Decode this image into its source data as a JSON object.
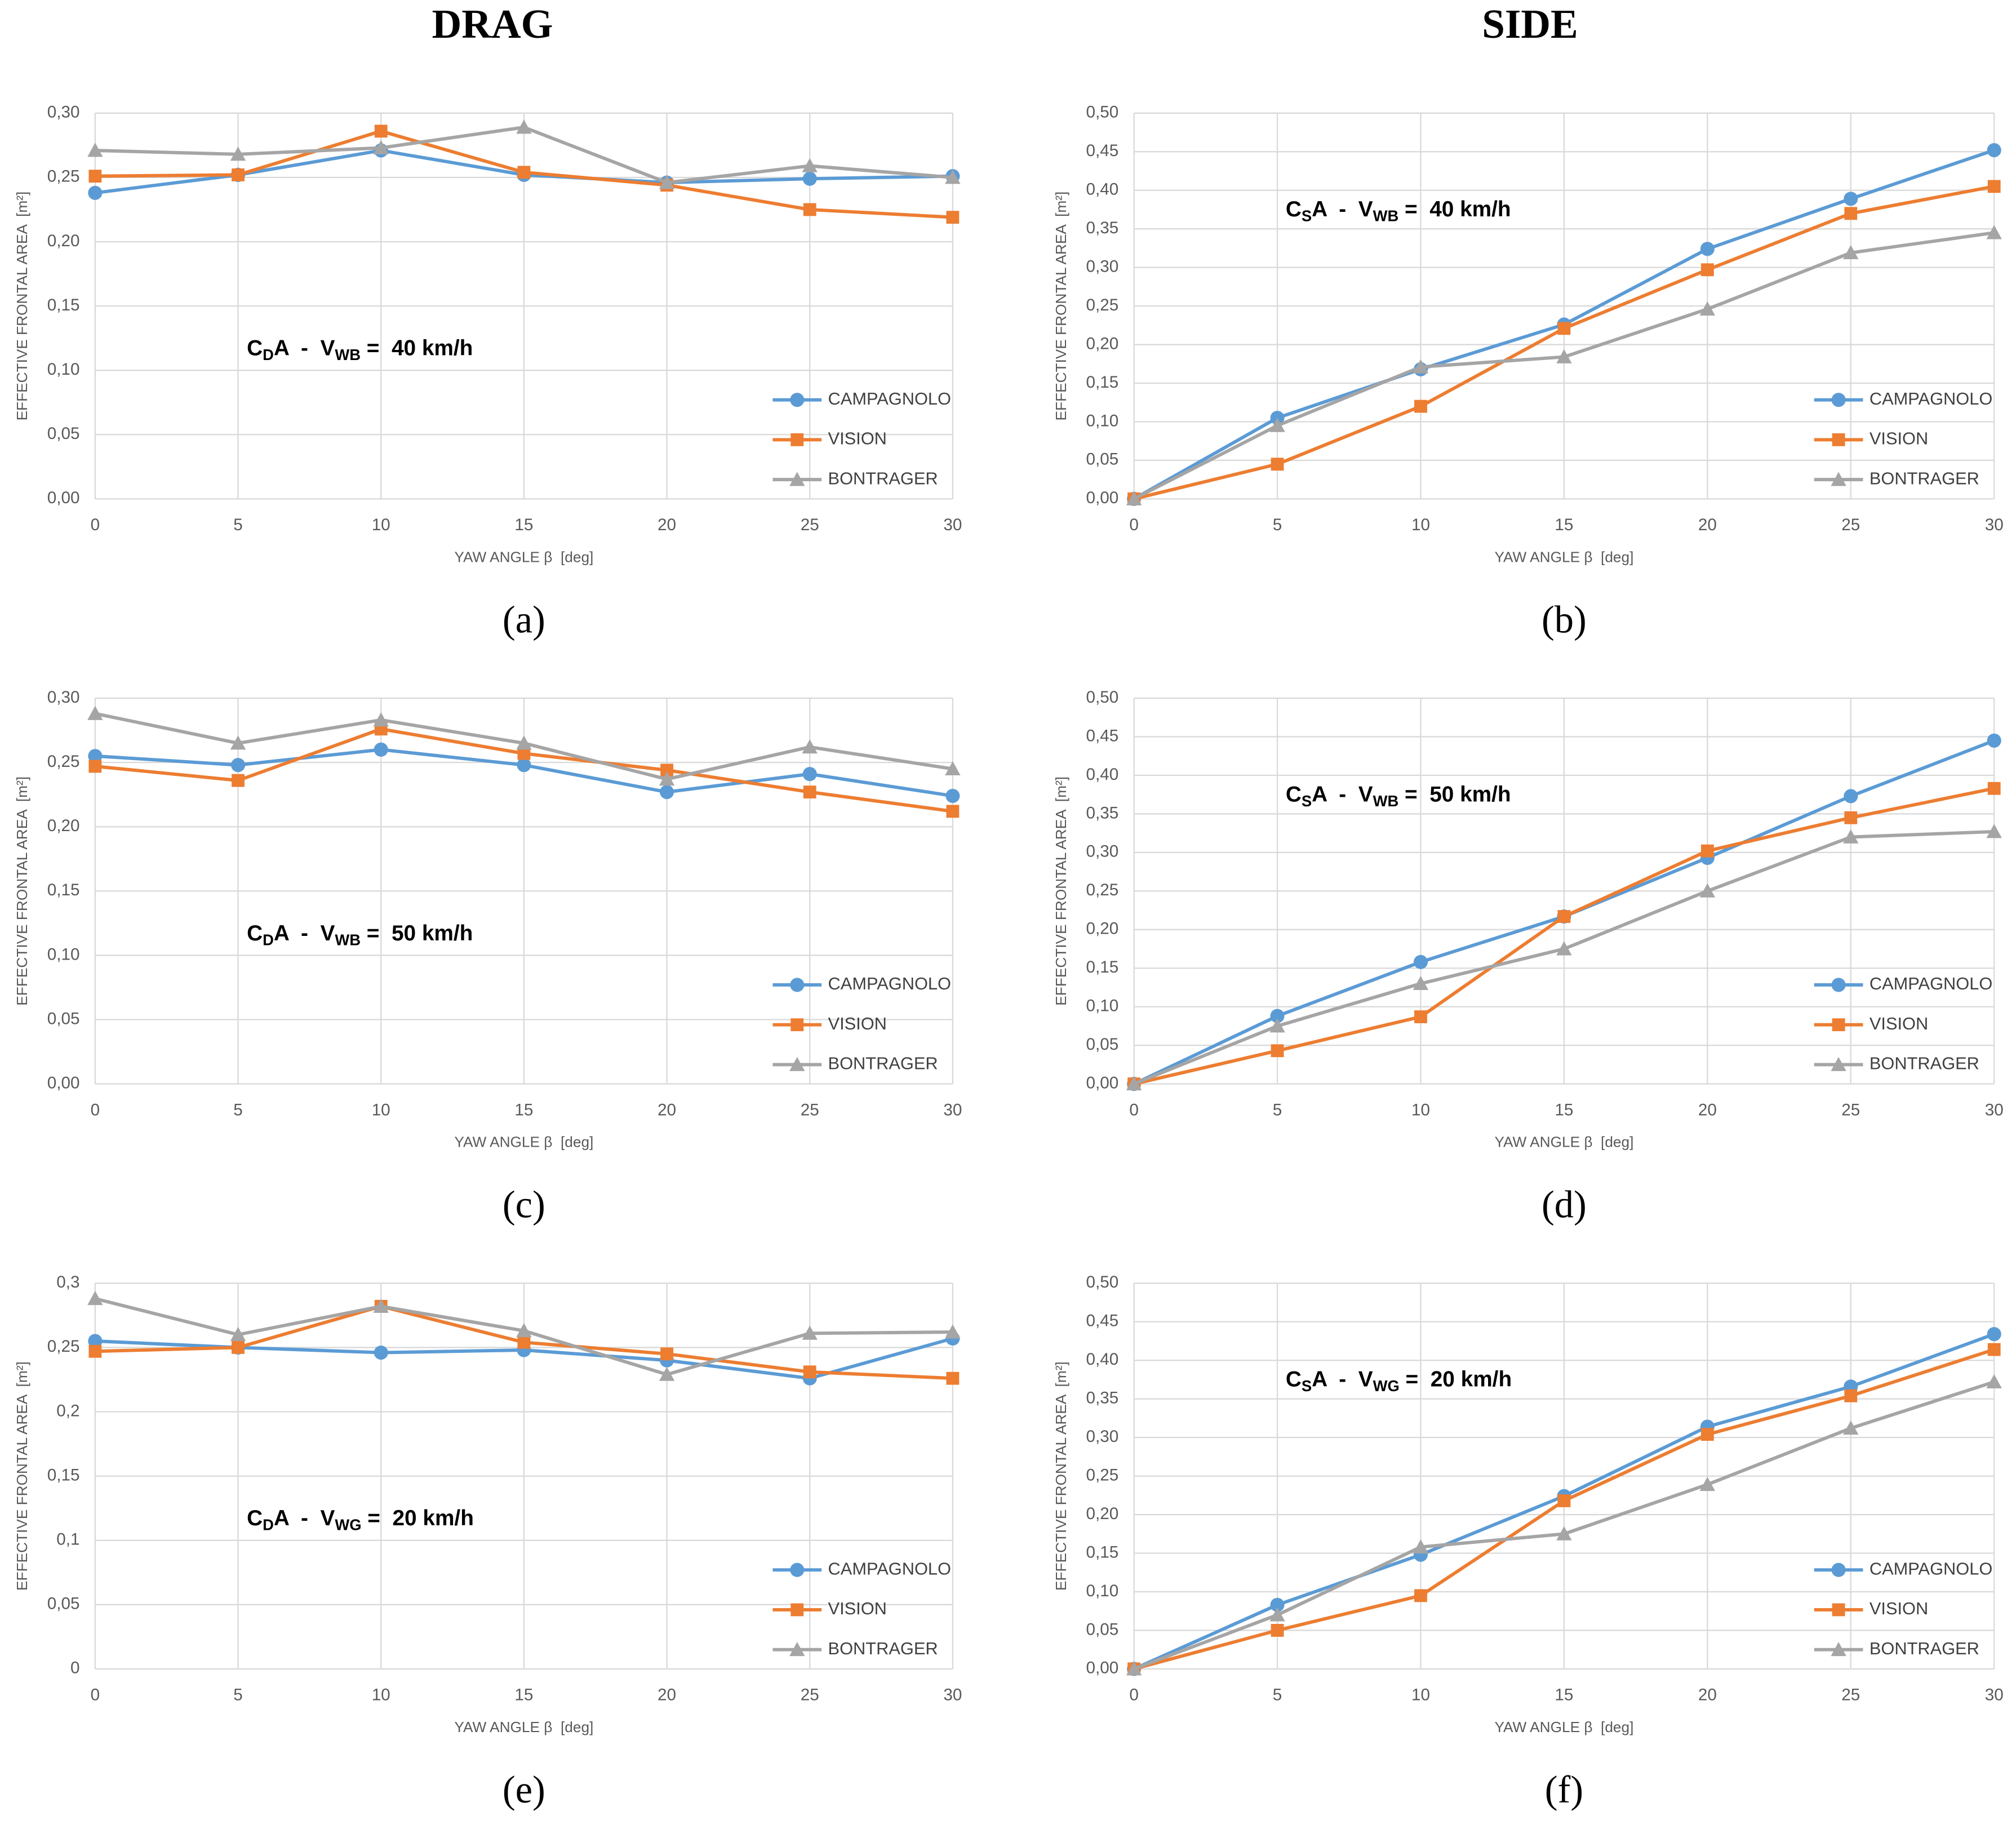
{
  "column_titles": [
    "DRAG",
    "SIDE"
  ],
  "chart_data": [
    {
      "type": "line",
      "label": "(a)",
      "annotation": [
        "C",
        "D",
        "A  -  V",
        "WB",
        " =  40 km/h"
      ],
      "x_label": "YAW ANGLE β  [deg]",
      "y_label": "EFFECTIVE FRONTAL AREA  [m²]",
      "x": [
        0,
        5,
        10,
        15,
        20,
        25,
        30
      ],
      "xlim": [
        0,
        30
      ],
      "xticks": [
        0,
        5,
        10,
        15,
        20,
        25,
        30
      ],
      "ylim": [
        0,
        0.3
      ],
      "yticks": [
        {
          "value": 0,
          "label": "0,00"
        },
        {
          "value": 0.05,
          "label": "0,05"
        },
        {
          "value": 0.1,
          "label": "0,10"
        },
        {
          "value": 0.15,
          "label": "0,15"
        },
        {
          "value": 0.2,
          "label": "0,20"
        },
        {
          "value": 0.25,
          "label": "0,25"
        },
        {
          "value": 0.3,
          "label": "0,30"
        }
      ],
      "grid": true,
      "legend": "lower right",
      "series": [
        {
          "name": "CAMPAGNOLO",
          "color": "#5b9bd5",
          "marker": "circle",
          "values": [
            0.238,
            0.252,
            0.271,
            0.252,
            0.246,
            0.249,
            0.251
          ]
        },
        {
          "name": "VISION",
          "color": "#ed7d31",
          "marker": "square",
          "values": [
            0.251,
            0.252,
            0.286,
            0.254,
            0.244,
            0.225,
            0.219
          ]
        },
        {
          "name": "BONTRAGER",
          "color": "#a5a5a5",
          "marker": "triangle",
          "values": [
            0.271,
            0.268,
            0.273,
            0.289,
            0.246,
            0.259,
            0.25
          ]
        }
      ]
    },
    {
      "type": "line",
      "label": "(b)",
      "annotation": [
        "C",
        "S",
        "A  -  V",
        "WB",
        " =  40 km/h"
      ],
      "x_label": "YAW ANGLE β  [deg]",
      "y_label": "EFFECTIVE FRONTAL AREA  [m²]",
      "x": [
        0,
        5,
        10,
        15,
        20,
        25,
        30
      ],
      "xlim": [
        0,
        30
      ],
      "xticks": [
        0,
        5,
        10,
        15,
        20,
        25,
        30
      ],
      "ylim": [
        0,
        0.5
      ],
      "yticks": [
        {
          "value": 0,
          "label": "0,00"
        },
        {
          "value": 0.05,
          "label": "0,05"
        },
        {
          "value": 0.1,
          "label": "0,10"
        },
        {
          "value": 0.15,
          "label": "0,15"
        },
        {
          "value": 0.2,
          "label": "0,20"
        },
        {
          "value": 0.25,
          "label": "0,25"
        },
        {
          "value": 0.3,
          "label": "0,30"
        },
        {
          "value": 0.35,
          "label": "0,35"
        },
        {
          "value": 0.4,
          "label": "0,40"
        },
        {
          "value": 0.45,
          "label": "0,45"
        },
        {
          "value": 0.5,
          "label": "0,50"
        }
      ],
      "grid": true,
      "legend": "lower right",
      "series": [
        {
          "name": "CAMPAGNOLO",
          "color": "#5b9bd5",
          "marker": "circle",
          "values": [
            0,
            0.105,
            0.168,
            0.226,
            0.324,
            0.389,
            0.452
          ]
        },
        {
          "name": "VISION",
          "color": "#ed7d31",
          "marker": "square",
          "values": [
            0,
            0.045,
            0.12,
            0.221,
            0.297,
            0.37,
            0.405
          ]
        },
        {
          "name": "BONTRAGER",
          "color": "#a5a5a5",
          "marker": "triangle",
          "values": [
            0,
            0.095,
            0.171,
            0.184,
            0.246,
            0.319,
            0.345
          ]
        }
      ]
    },
    {
      "type": "line",
      "label": "(c)",
      "annotation": [
        "C",
        "D",
        "A  -  V",
        "WB",
        " =  50 km/h"
      ],
      "x_label": "YAW ANGLE β  [deg]",
      "y_label": "EFFECTIVE FRONTAL AREA  [m²]",
      "x": [
        0,
        5,
        10,
        15,
        20,
        25,
        30
      ],
      "xlim": [
        0,
        30
      ],
      "xticks": [
        0,
        5,
        10,
        15,
        20,
        25,
        30
      ],
      "ylim": [
        0,
        0.3
      ],
      "yticks": [
        {
          "value": 0,
          "label": "0,00"
        },
        {
          "value": 0.05,
          "label": "0,05"
        },
        {
          "value": 0.1,
          "label": "0,10"
        },
        {
          "value": 0.15,
          "label": "0,15"
        },
        {
          "value": 0.2,
          "label": "0,20"
        },
        {
          "value": 0.25,
          "label": "0,25"
        },
        {
          "value": 0.3,
          "label": "0,30"
        }
      ],
      "grid": true,
      "legend": "lower right",
      "series": [
        {
          "name": "CAMPAGNOLO",
          "color": "#5b9bd5",
          "marker": "circle",
          "values": [
            0.255,
            0.248,
            0.26,
            0.248,
            0.227,
            0.241,
            0.224
          ]
        },
        {
          "name": "VISION",
          "color": "#ed7d31",
          "marker": "square",
          "values": [
            0.247,
            0.236,
            0.276,
            0.257,
            0.244,
            0.227,
            0.212
          ]
        },
        {
          "name": "BONTRAGER",
          "color": "#a5a5a5",
          "marker": "triangle",
          "values": [
            0.288,
            0.265,
            0.283,
            0.265,
            0.237,
            0.262,
            0.245
          ]
        }
      ]
    },
    {
      "type": "line",
      "label": "(d)",
      "annotation": [
        "C",
        "S",
        "A  -  V",
        "WB",
        " =  50 km/h"
      ],
      "x_label": "YAW ANGLE β  [deg]",
      "y_label": "EFFECTIVE FRONTAL AREA  [m²]",
      "x": [
        0,
        5,
        10,
        15,
        20,
        25,
        30
      ],
      "xlim": [
        0,
        30
      ],
      "xticks": [
        0,
        5,
        10,
        15,
        20,
        25,
        30
      ],
      "ylim": [
        0,
        0.5
      ],
      "yticks": [
        {
          "value": 0,
          "label": "0,00"
        },
        {
          "value": 0.05,
          "label": "0,05"
        },
        {
          "value": 0.1,
          "label": "0,10"
        },
        {
          "value": 0.15,
          "label": "0,15"
        },
        {
          "value": 0.2,
          "label": "0,20"
        },
        {
          "value": 0.25,
          "label": "0,25"
        },
        {
          "value": 0.3,
          "label": "0,30"
        },
        {
          "value": 0.35,
          "label": "0,35"
        },
        {
          "value": 0.4,
          "label": "0,40"
        },
        {
          "value": 0.45,
          "label": "0,45"
        },
        {
          "value": 0.5,
          "label": "0,50"
        }
      ],
      "grid": true,
      "legend": "lower right",
      "series": [
        {
          "name": "CAMPAGNOLO",
          "color": "#5b9bd5",
          "marker": "circle",
          "values": [
            0,
            0.088,
            0.158,
            0.217,
            0.293,
            0.373,
            0.445
          ]
        },
        {
          "name": "VISION",
          "color": "#ed7d31",
          "marker": "square",
          "values": [
            0,
            0.043,
            0.087,
            0.217,
            0.302,
            0.345,
            0.383
          ]
        },
        {
          "name": "BONTRAGER",
          "color": "#a5a5a5",
          "marker": "triangle",
          "values": [
            0,
            0.075,
            0.13,
            0.175,
            0.25,
            0.32,
            0.327
          ]
        }
      ]
    },
    {
      "type": "line",
      "label": "(e)",
      "annotation": [
        "C",
        "D",
        "A  -  V",
        "WG",
        " =  20 km/h"
      ],
      "x_label": "YAW ANGLE β  [deg]",
      "y_label": "EFFECTIVE FRONTAL AREA  [m²]",
      "x": [
        0,
        5,
        10,
        15,
        20,
        25,
        30
      ],
      "xlim": [
        0,
        30
      ],
      "xticks": [
        0,
        5,
        10,
        15,
        20,
        25,
        30
      ],
      "ylim": [
        0,
        0.3
      ],
      "yticks": [
        0,
        {
          "value": 0.05,
          "label": "0,05"
        },
        {
          "value": 0.1,
          "label": "0,1"
        },
        {
          "value": 0.15,
          "label": "0,15"
        },
        {
          "value": 0.2,
          "label": "0,2"
        },
        {
          "value": 0.25,
          "label": "0,25"
        },
        {
          "value": 0.3,
          "label": "0,3"
        }
      ],
      "grid": true,
      "legend": "lower right",
      "series": [
        {
          "name": "CAMPAGNOLO",
          "color": "#5b9bd5",
          "marker": "circle",
          "values": [
            0.255,
            0.25,
            0.246,
            0.248,
            0.24,
            0.226,
            0.257
          ]
        },
        {
          "name": "VISION",
          "color": "#ed7d31",
          "marker": "square",
          "values": [
            0.247,
            0.25,
            0.282,
            0.254,
            0.245,
            0.231,
            0.226
          ]
        },
        {
          "name": "BONTRAGER",
          "color": "#a5a5a5",
          "marker": "triangle",
          "values": [
            0.288,
            0.26,
            0.282,
            0.263,
            0.229,
            0.261,
            0.262
          ]
        }
      ]
    },
    {
      "type": "line",
      "label": "(f)",
      "annotation": [
        "C",
        "S",
        "A  -  V",
        "WG",
        " =  20 km/h"
      ],
      "x_label": "YAW ANGLE β  [deg]",
      "y_label": "EFFECTIVE FRONTAL AREA  [m²]",
      "x": [
        0,
        5,
        10,
        15,
        20,
        25,
        30
      ],
      "xlim": [
        0,
        30
      ],
      "xticks": [
        0,
        5,
        10,
        15,
        20,
        25,
        30
      ],
      "ylim": [
        0,
        0.5
      ],
      "yticks": [
        {
          "value": 0,
          "label": "0,00"
        },
        {
          "value": 0.05,
          "label": "0,05"
        },
        {
          "value": 0.1,
          "label": "0,10"
        },
        {
          "value": 0.15,
          "label": "0,15"
        },
        {
          "value": 0.2,
          "label": "0,20"
        },
        {
          "value": 0.25,
          "label": "0,25"
        },
        {
          "value": 0.3,
          "label": "0,30"
        },
        {
          "value": 0.35,
          "label": "0,35"
        },
        {
          "value": 0.4,
          "label": "0,40"
        },
        {
          "value": 0.45,
          "label": "0,45"
        },
        {
          "value": 0.5,
          "label": "0,50"
        }
      ],
      "grid": true,
      "legend": "lower right",
      "series": [
        {
          "name": "CAMPAGNOLO",
          "color": "#5b9bd5",
          "marker": "circle",
          "values": [
            0,
            0.083,
            0.148,
            0.224,
            0.314,
            0.366,
            0.434
          ]
        },
        {
          "name": "VISION",
          "color": "#ed7d31",
          "marker": "square",
          "values": [
            0,
            0.05,
            0.095,
            0.218,
            0.304,
            0.354,
            0.414
          ]
        },
        {
          "name": "BONTRAGER",
          "color": "#a5a5a5",
          "marker": "triangle",
          "values": [
            0,
            0.07,
            0.158,
            0.175,
            0.239,
            0.312,
            0.372
          ]
        }
      ]
    }
  ]
}
